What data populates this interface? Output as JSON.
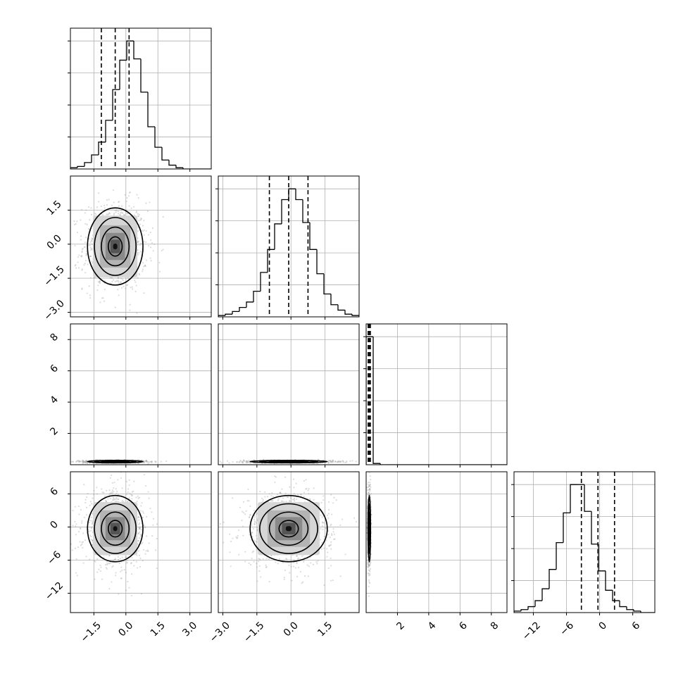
{
  "chart_data": {
    "type": "corner",
    "n_params": 4,
    "grid": true,
    "quantile_lines": "dashed",
    "params": [
      {
        "range": [
          -2.6,
          4.0
        ],
        "ticks": [
          -1.5,
          0.0,
          1.5,
          3.0
        ],
        "tick_labels": [
          "−1.5",
          "0.0",
          "1.5",
          "3.0"
        ],
        "quantiles": [
          -1.15,
          -0.5,
          0.15
        ],
        "hist_values": [
          1,
          2,
          5,
          11,
          21,
          38,
          62,
          85,
          100,
          86,
          60,
          33,
          17,
          7,
          3,
          1,
          0,
          0,
          0,
          0
        ]
      },
      {
        "range": [
          -3.2,
          3.0
        ],
        "ticks": [
          -3.0,
          -1.5,
          0.0,
          1.5
        ],
        "tick_labels": [
          "−3.0",
          "−1.5",
          "0.0",
          "1.5"
        ],
        "quantiles": [
          -0.95,
          -0.1,
          0.75
        ],
        "hist_values": [
          1,
          2,
          4,
          7,
          11,
          19,
          33,
          50,
          69,
          87,
          95,
          87,
          70,
          50,
          32,
          17,
          9,
          5,
          2,
          1
        ]
      },
      {
        "range": [
          0.0,
          9.0
        ],
        "ticks": [
          2,
          4,
          6,
          8
        ],
        "tick_labels": [
          "2",
          "4",
          "6",
          "8"
        ],
        "quantiles": [
          0.13,
          0.2,
          0.27
        ],
        "hist_values": [
          100,
          1,
          0,
          0,
          0,
          0,
          0,
          0,
          0,
          0,
          0,
          0,
          0,
          0,
          0,
          0,
          0,
          0,
          0,
          0
        ]
      },
      {
        "range": [
          -15.5,
          10.0
        ],
        "ticks": [
          -12,
          -6,
          0,
          6
        ],
        "tick_labels": [
          "−12",
          "−6",
          "0",
          "6"
        ],
        "quantiles": [
          -3.3,
          -0.3,
          2.7
        ],
        "hist_values": [
          1,
          2,
          4,
          8,
          16,
          29,
          47,
          67,
          86,
          86,
          68,
          46,
          28,
          15,
          8,
          4,
          2,
          1,
          0,
          0
        ]
      }
    ],
    "centers": [
      -0.5,
      -0.1,
      0.2,
      -0.3
    ],
    "sigmas": [
      0.65,
      0.85,
      0.04,
      3.0
    ]
  }
}
